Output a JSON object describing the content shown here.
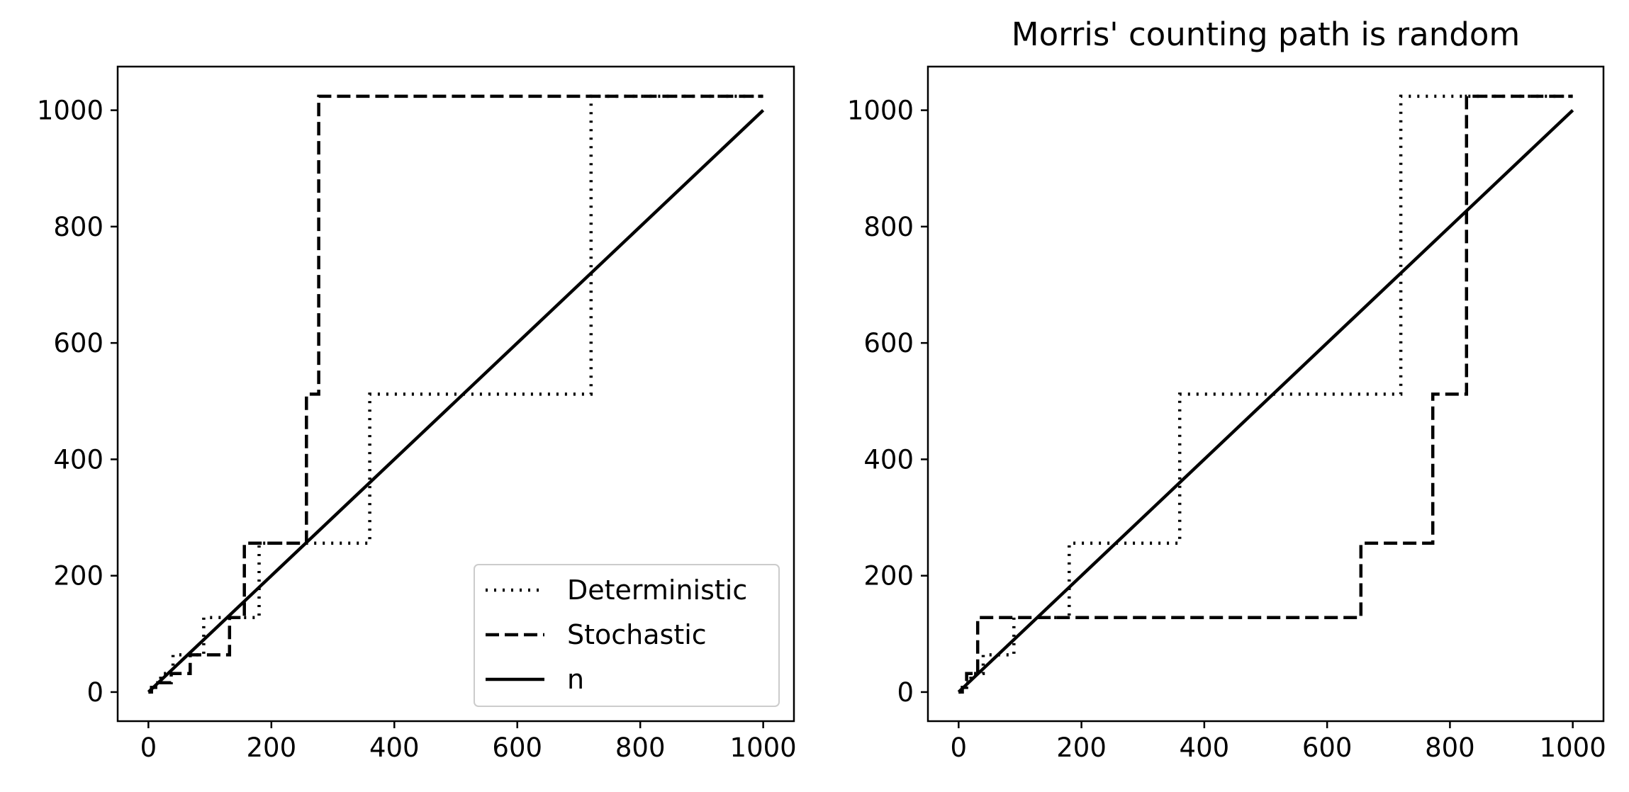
{
  "chart_data": [
    {
      "type": "line",
      "title": "",
      "xlabel": "",
      "ylabel": "",
      "xlim": [
        -50,
        1050
      ],
      "ylim": [
        -50,
        1075
      ],
      "xticks": [
        0,
        200,
        400,
        600,
        800,
        1000
      ],
      "yticks": [
        0,
        200,
        400,
        600,
        800,
        1000
      ],
      "xtick_labels": [
        "0",
        "200",
        "400",
        "600",
        "800",
        "1000"
      ],
      "ytick_labels": [
        "0",
        "200",
        "400",
        "600",
        "800",
        "1000"
      ],
      "grid": false,
      "legend_position": "lower-right",
      "series": [
        {
          "name": "Deterministic",
          "style": "dotted",
          "color": "#000000",
          "x": [
            0,
            5,
            5,
            10,
            10,
            20,
            20,
            40,
            40,
            90,
            90,
            180,
            180,
            360,
            360,
            720,
            720,
            1000
          ],
          "y": [
            0,
            0,
            8,
            8,
            16,
            16,
            32,
            32,
            64,
            64,
            128,
            128,
            256,
            256,
            512,
            512,
            1024,
            1024
          ]
        },
        {
          "name": "Stochastic",
          "style": "dashed",
          "color": "#000000",
          "x": [
            0,
            5,
            5,
            15,
            15,
            37,
            37,
            68,
            68,
            132,
            132,
            156,
            156,
            257,
            257,
            277,
            277,
            1000
          ],
          "y": [
            0,
            0,
            8,
            8,
            16,
            16,
            32,
            32,
            64,
            64,
            128,
            128,
            256,
            256,
            512,
            512,
            1024,
            1024
          ]
        },
        {
          "name": "n",
          "style": "solid",
          "color": "#000000",
          "x": [
            0,
            1000
          ],
          "y": [
            0,
            1000
          ]
        }
      ],
      "legend": [
        "Deterministic",
        "Stochastic",
        "n"
      ]
    },
    {
      "type": "line",
      "title": "Morris' counting path is random",
      "xlabel": "",
      "ylabel": "",
      "xlim": [
        -50,
        1050
      ],
      "ylim": [
        -50,
        1075
      ],
      "xticks": [
        0,
        200,
        400,
        600,
        800,
        1000
      ],
      "yticks": [
        0,
        200,
        400,
        600,
        800,
        1000
      ],
      "xtick_labels": [
        "0",
        "200",
        "400",
        "600",
        "800",
        "1000"
      ],
      "ytick_labels": [
        "0",
        "200",
        "400",
        "600",
        "800",
        "1000"
      ],
      "grid": false,
      "series": [
        {
          "style": "dotted",
          "color": "#000000",
          "x": [
            0,
            5,
            5,
            10,
            10,
            20,
            20,
            40,
            40,
            90,
            90,
            180,
            180,
            360,
            360,
            720,
            720,
            1000
          ],
          "y": [
            0,
            0,
            8,
            8,
            16,
            16,
            32,
            32,
            64,
            64,
            128,
            128,
            256,
            256,
            512,
            512,
            1024,
            1024
          ]
        },
        {
          "style": "dashed",
          "color": "#000000",
          "x": [
            0,
            6,
            6,
            13,
            13,
            31,
            31,
            655,
            655,
            772,
            772,
            827,
            827,
            1000
          ],
          "y": [
            0,
            0,
            8,
            8,
            32,
            32,
            128,
            128,
            256,
            256,
            512,
            512,
            1024,
            1024
          ]
        },
        {
          "style": "solid",
          "color": "#000000",
          "x": [
            0,
            1000
          ],
          "y": [
            0,
            1000
          ]
        }
      ]
    }
  ]
}
